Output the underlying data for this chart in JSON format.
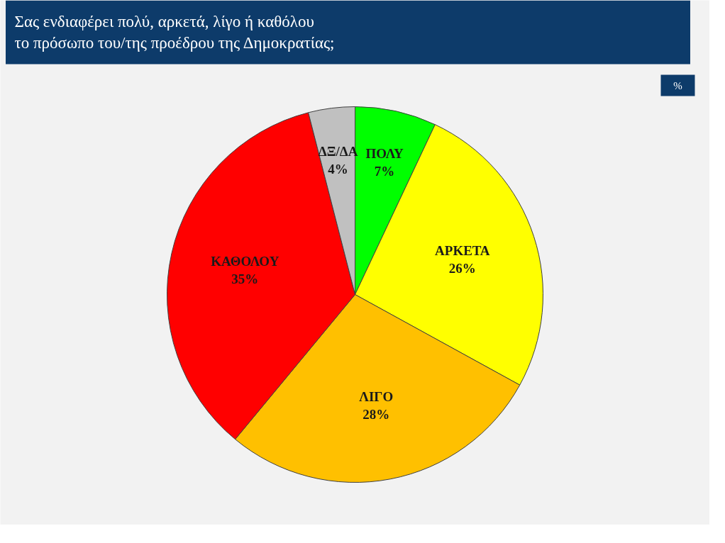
{
  "chart_data": {
    "type": "pie",
    "title": "Σας ενδιαφέρει πολύ, αρκετά, λίγο ή καθόλου\nτο πρόσωπο του/της προέδρου της Δημοκρατίας;",
    "categories": [
      "ΠΟΛΥ",
      "ΑΡΚΕΤΑ",
      "ΛΙΓΟ",
      "ΚΑΘΟΛΟΥ",
      "ΔΞ/ΔΑ"
    ],
    "values": [
      7,
      26,
      28,
      35,
      4
    ],
    "value_labels": [
      "7%",
      "26%",
      "28%",
      "35%",
      "4%"
    ],
    "colors": [
      "#00ff00",
      "#ffff00",
      "#ffc000",
      "#ff0000",
      "#c0c0c0"
    ],
    "annotations": [
      "%"
    ]
  }
}
